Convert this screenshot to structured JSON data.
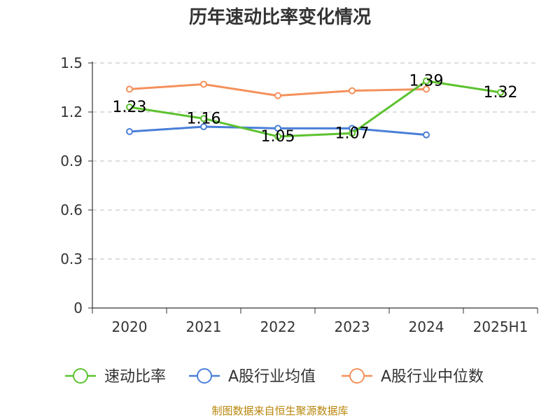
{
  "chart_data": {
    "type": "line",
    "title": "历年速动比率变化情况",
    "categories": [
      "2020",
      "2021",
      "2022",
      "2023",
      "2024",
      "2025H1"
    ],
    "ylim": [
      0,
      1.5
    ],
    "yticks": [
      "0",
      "0.3",
      "0.6",
      "0.9",
      "1.2",
      "1.5"
    ],
    "ytick_values": [
      0,
      0.3,
      0.6,
      0.9,
      1.2,
      1.5
    ],
    "grid": true,
    "legend_position": "bottom",
    "series": [
      {
        "name": "速动比率",
        "color": "#5cc22e",
        "values": [
          1.23,
          1.16,
          1.05,
          1.07,
          1.39,
          1.32
        ],
        "labels": [
          "1.23",
          "1.16",
          "1.05",
          "1.07",
          "1.39",
          "1.32"
        ],
        "show_labels": true
      },
      {
        "name": "A股行业均值",
        "color": "#4a7fd8",
        "values": [
          1.08,
          1.11,
          1.1,
          1.1,
          1.06,
          null
        ],
        "show_labels": false
      },
      {
        "name": "A股行业中位数",
        "color": "#f4915c",
        "values": [
          1.34,
          1.37,
          1.3,
          1.33,
          1.34,
          null
        ],
        "show_labels": false
      }
    ],
    "source": "制图数据来自恒生聚源数据库"
  }
}
